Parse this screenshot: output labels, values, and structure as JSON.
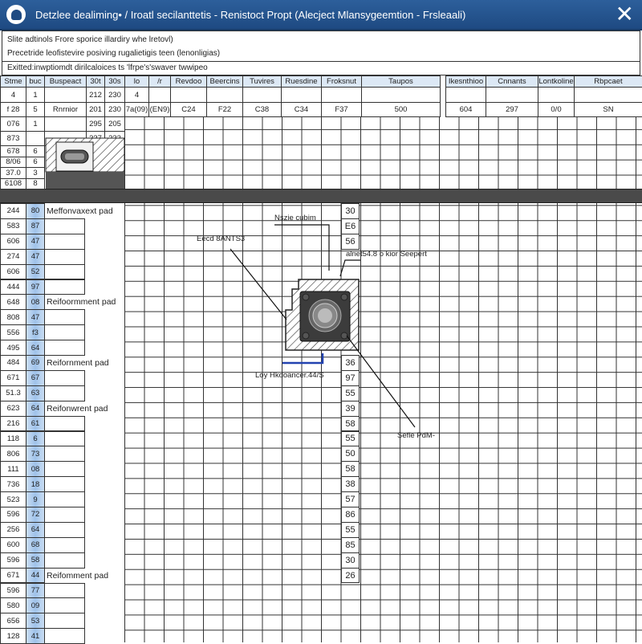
{
  "window": {
    "title": "Detzlee dealiming• / Iroatl secilanttetis - Renistoct Propt (Alecject Mlansygeemtion - Frsleaali)",
    "close_icon": "close-icon",
    "logo_icon": "app-logo-icon"
  },
  "info": {
    "line1": "Slite adtinols Frore sporice illardiry whe lretovl)",
    "line2": "Precetride leofistevire posiving rugalietigis teen (lenonligias)",
    "line3": "Exitted:inwptiomdt dirilcaloices ts 'lfrpe's'swaver twwipeo"
  },
  "header": [
    "Stme",
    "buc",
    "Buspeact",
    "30t",
    "30s",
    "lo",
    "/r",
    "Revdoo",
    "Beercins",
    "Tuvires",
    "Ruesdine",
    "Froksnut",
    "Taupos",
    "Ikesnthioo",
    "Cnnants",
    "Lontkoline",
    "Rbpcaet"
  ],
  "top_rows": [
    [
      "4",
      "1",
      "",
      "212",
      "230",
      "4",
      "",
      "",
      "",
      "",
      "",
      "",
      "",
      "",
      "",
      "",
      ""
    ],
    [
      "f 28",
      "5",
      "Rnrnior",
      "201",
      "230",
      "7a(09)",
      "(EN9)",
      "C24",
      "F22",
      "C38",
      "C34",
      "F37",
      "500",
      "604",
      "297",
      "0/0",
      "SN"
    ],
    [
      "076",
      "1",
      "",
      "295",
      "205"
    ],
    [
      "873",
      "",
      "",
      "337",
      "233"
    ],
    [
      "678",
      "6"
    ],
    [
      "8/06",
      "6"
    ],
    [
      "37.0",
      "3"
    ],
    [
      "6108",
      "8"
    ]
  ],
  "rows": [
    [
      "244",
      "80",
      "Meffonvaxext pad"
    ],
    [
      "583",
      "87",
      ""
    ],
    [
      "606",
      "47",
      ""
    ],
    [
      "274",
      "47",
      ""
    ],
    [
      "606",
      "52",
      ""
    ],
    [
      "444",
      "97",
      ""
    ],
    [
      "648",
      "08",
      "Reifoormment pad"
    ],
    [
      "808",
      "47",
      ""
    ],
    [
      "556",
      "f3",
      ""
    ],
    [
      "495",
      "64",
      ""
    ],
    [
      "484",
      "69",
      "Reifornment pad"
    ],
    [
      "671",
      "67",
      ""
    ],
    [
      "51.3",
      "63",
      ""
    ],
    [
      "623",
      "64",
      "Reifonwrent pad"
    ],
    [
      "216",
      "61",
      ""
    ],
    [
      "118",
      "6",
      ""
    ],
    [
      "806",
      "73",
      ""
    ],
    [
      "111",
      "08",
      ""
    ],
    [
      "736",
      "18",
      ""
    ],
    [
      "523",
      "9",
      ""
    ],
    [
      "596",
      "72",
      ""
    ],
    [
      "256",
      "64",
      ""
    ],
    [
      "600",
      "68",
      ""
    ],
    [
      "596",
      "58",
      ""
    ],
    [
      "671",
      "44",
      "Reifomment pad"
    ],
    [
      "596",
      "77",
      ""
    ],
    [
      "580",
      "09",
      ""
    ],
    [
      "656",
      "53",
      ""
    ],
    [
      "128",
      "41",
      ""
    ]
  ],
  "right_values": [
    "30",
    "E6",
    "56",
    "",
    "",
    "",
    "",
    "",
    "",
    "",
    "36",
    "97",
    "55",
    "39",
    "58",
    "55",
    "50",
    "58",
    "38",
    "57",
    "86",
    "55",
    "85",
    "30",
    "26",
    "",
    "",
    "",
    ""
  ],
  "annotations": {
    "top": "Nszie cubim",
    "left": "Eecd 8ANTS3",
    "right": "alnet54.8 o kior Seepert",
    "bottom": "Loy Hkdoancer.44/S",
    "lower_right": "Sefle PdM-"
  },
  "colors": {
    "titlebar": "#1e4a82",
    "highlight_column": "#9fc2ea",
    "leader_blue": "#2343b0"
  }
}
